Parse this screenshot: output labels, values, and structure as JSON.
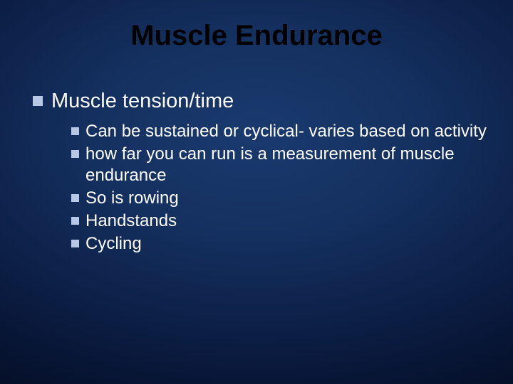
{
  "slide": {
    "title": "Muscle Endurance",
    "background_gradient": [
      "#1a3a6e",
      "#14305f",
      "#0d2048",
      "#06122e",
      "#020818"
    ],
    "title_color": "#000000",
    "title_fontsize": 40,
    "text_color": "#ffffff",
    "bullet_color": "#b6c8e6",
    "level1_fontsize": 29,
    "level2_fontsize": 24,
    "bullets": [
      {
        "text": "Muscle tension/time",
        "children": [
          {
            "text": "Can be sustained or cyclical- varies based on activity"
          },
          {
            "text": "how far you can run is a measurement of muscle endurance"
          },
          {
            "text": "So is rowing"
          },
          {
            "text": "Handstands"
          },
          {
            "text": "Cycling"
          }
        ]
      }
    ]
  }
}
